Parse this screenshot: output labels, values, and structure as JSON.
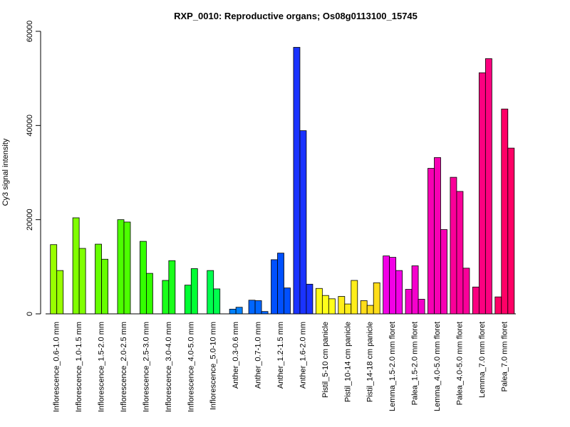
{
  "chart_data": {
    "type": "bar",
    "title": "RXP_0010: Reproductive organs; Os08g0113100_15745",
    "ylabel": "Cy3 signal intensity",
    "xlabel": "",
    "ylim": [
      0,
      60000
    ],
    "yticks": [
      0,
      20000,
      40000,
      60000
    ],
    "grid": false,
    "groups": [
      {
        "label": "Inflorescence_0.6-1.0 mm",
        "color": "#99FF00",
        "values": [
          14700,
          9200
        ]
      },
      {
        "label": "Inflorescence_1.0-1.5 mm",
        "color": "#80FF00",
        "values": [
          20400,
          13900
        ]
      },
      {
        "label": "Inflorescence_1.5-2.0 mm",
        "color": "#66FF00",
        "values": [
          14800,
          11600
        ]
      },
      {
        "label": "Inflorescence_2.0-2.5 mm",
        "color": "#4DFF00",
        "values": [
          20000,
          19500
        ]
      },
      {
        "label": "Inflorescence_2.5-3.0 mm",
        "color": "#33FF00",
        "values": [
          15400,
          8600
        ]
      },
      {
        "label": "Inflorescence_3.0-4.0 mm",
        "color": "#1AFF1A",
        "values": [
          7100,
          11300
        ]
      },
      {
        "label": "Inflorescence_4.0-5.0 mm",
        "color": "#00FF33",
        "values": [
          6100,
          9600
        ]
      },
      {
        "label": "Inflorescence_5.0-10 mm",
        "color": "#00FF4D",
        "values": [
          9200,
          5300
        ]
      },
      {
        "label": "Anther_0.3-0.6 mm",
        "color": "#0080FF",
        "values": [
          1000,
          1400
        ]
      },
      {
        "label": "Anther_0.7-1.0 mm",
        "color": "#0066FF",
        "values": [
          2900,
          2800,
          500
        ]
      },
      {
        "label": "Anther_1.2-1.5 mm",
        "color": "#0050FF",
        "values": [
          11500,
          12900,
          5500
        ]
      },
      {
        "label": "Anther_1.6-2.0 mm",
        "color": "#1A33FF",
        "values": [
          56600,
          38900,
          6300
        ]
      },
      {
        "label": "Pistil_5-10 cm panicle",
        "color": "#FFFF1A",
        "values": [
          5400,
          3900,
          3200
        ]
      },
      {
        "label": "Pistil_10-14 cm panicle",
        "color": "#FFEE1A",
        "values": [
          3700,
          2100,
          7100
        ]
      },
      {
        "label": "Pistil_14-18 cm panicle",
        "color": "#FFDD1A",
        "values": [
          2800,
          1800,
          6600
        ]
      },
      {
        "label": "Lemma_1.5-2.0 mm floret",
        "color": "#F200E6",
        "values": [
          12300,
          12000,
          9200
        ]
      },
      {
        "label": "Palea_1.5-2.0 mm floret",
        "color": "#F500CC",
        "values": [
          5200,
          10200,
          3100
        ]
      },
      {
        "label": "Lemma_4.0-5.0 mm floret",
        "color": "#F700B3",
        "values": [
          30900,
          33200,
          17900
        ]
      },
      {
        "label": "Palea_4.0-5.0 mm floret",
        "color": "#FA0099",
        "values": [
          29000,
          26000,
          9700
        ]
      },
      {
        "label": "Lemma_7.0 mm floret",
        "color": "#FC0080",
        "values": [
          5700,
          51200,
          54200
        ]
      },
      {
        "label": "Palea_7.0 mm floret",
        "color": "#FF0066",
        "values": [
          3600,
          43500,
          35200
        ]
      }
    ]
  }
}
